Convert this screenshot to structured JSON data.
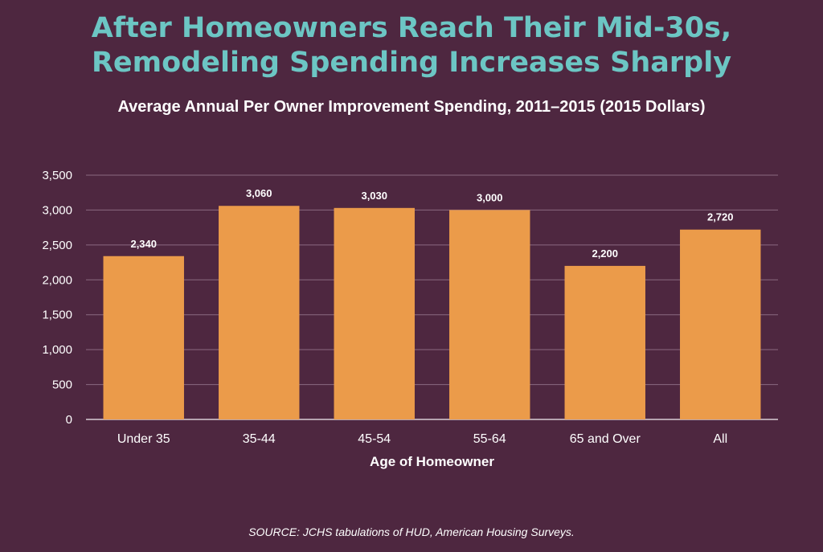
{
  "title_lines": [
    "After Homeowners Reach Their Mid-30s,",
    "Remodeling Spending Increases Sharply"
  ],
  "subtitle": "Average Annual Per Owner Improvement Spending, 2011–2015 (2015 Dollars)",
  "source": "SOURCE: JCHS tabulations of HUD, American Housing Surveys.",
  "colors": {
    "background": "#4e2740",
    "title": "#6cc6c4",
    "bar": "#eb9b4a",
    "grid": "#8a6a80",
    "axis": "#d9cdd6",
    "text": "#ffffff"
  },
  "chart_data": {
    "type": "bar",
    "title": "Average Annual Per Owner Improvement Spending, 2011–2015 (2015 Dollars)",
    "xlabel": "Age of Homeowner",
    "ylabel": "",
    "categories": [
      "Under 35",
      "35-44",
      "45-54",
      "55-64",
      "65 and Over",
      "All"
    ],
    "values": [
      2340,
      3060,
      3030,
      3000,
      2200,
      2720
    ],
    "value_labels": [
      "2,340",
      "3,060",
      "3,030",
      "3,000",
      "2,200",
      "2,720"
    ],
    "ylim": [
      0,
      3500
    ],
    "yticks": [
      0,
      500,
      1000,
      1500,
      2000,
      2500,
      3000,
      3500
    ],
    "ytick_labels": [
      "0",
      "500",
      "1,000",
      "1,500",
      "2,000",
      "2,500",
      "3,000",
      "3,500"
    ],
    "grid": true,
    "legend": "none"
  }
}
